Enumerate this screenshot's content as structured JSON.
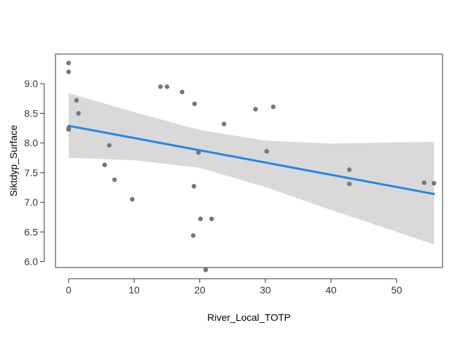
{
  "chart_data": {
    "type": "scatter",
    "title": "",
    "xlabel": "River_Local_TOTP",
    "ylabel": "Siktdyp_Surface",
    "xlim": [
      -2,
      57
    ],
    "ylim": [
      5.9,
      9.5
    ],
    "x_ticks": [
      0,
      10,
      20,
      30,
      40,
      50
    ],
    "y_ticks": [
      6.0,
      6.5,
      7.0,
      7.5,
      8.0,
      8.5,
      9.0
    ],
    "x_tick_labels": [
      "0",
      "10",
      "20",
      "30",
      "40",
      "50"
    ],
    "y_tick_labels": [
      "6.0",
      "6.5",
      "7.0",
      "7.5",
      "8.0",
      "8.5",
      "9.0"
    ],
    "grid": false,
    "points": [
      {
        "x": 0.0,
        "y": 9.35
      },
      {
        "x": 0.0,
        "y": 9.2
      },
      {
        "x": 0.0,
        "y": 8.25
      },
      {
        "x": 0.0,
        "y": 8.23
      },
      {
        "x": 1.2,
        "y": 8.72
      },
      {
        "x": 1.5,
        "y": 8.5
      },
      {
        "x": 5.5,
        "y": 7.63
      },
      {
        "x": 6.2,
        "y": 7.96
      },
      {
        "x": 7.0,
        "y": 7.38
      },
      {
        "x": 9.7,
        "y": 7.05
      },
      {
        "x": 14.0,
        "y": 8.95
      },
      {
        "x": 15.0,
        "y": 8.95
      },
      {
        "x": 17.3,
        "y": 8.86
      },
      {
        "x": 19.0,
        "y": 6.44
      },
      {
        "x": 19.1,
        "y": 7.27
      },
      {
        "x": 19.2,
        "y": 8.66
      },
      {
        "x": 19.8,
        "y": 7.84
      },
      {
        "x": 20.1,
        "y": 6.72
      },
      {
        "x": 20.9,
        "y": 5.86
      },
      {
        "x": 21.8,
        "y": 6.72
      },
      {
        "x": 23.7,
        "y": 8.32
      },
      {
        "x": 28.5,
        "y": 8.57
      },
      {
        "x": 30.2,
        "y": 7.86
      },
      {
        "x": 31.2,
        "y": 8.61
      },
      {
        "x": 42.8,
        "y": 7.55
      },
      {
        "x": 42.8,
        "y": 7.31
      },
      {
        "x": 54.2,
        "y": 7.33
      },
      {
        "x": 55.7,
        "y": 7.32
      }
    ],
    "fit_line": {
      "x": [
        0,
        55.7
      ],
      "y": [
        8.29,
        7.14
      ]
    },
    "confidence_band": {
      "x": [
        0,
        10,
        20,
        30,
        40,
        55.7
      ],
      "upper": [
        8.84,
        8.52,
        8.22,
        8.04,
        7.99,
        8.02
      ],
      "lower": [
        7.75,
        7.71,
        7.58,
        7.26,
        6.87,
        6.29
      ]
    },
    "colors": {
      "points": "#777777",
      "fit_line": "#1f86e8",
      "band": "#d9d9d9",
      "axis": "#333333",
      "panel_border": "#333333"
    }
  }
}
